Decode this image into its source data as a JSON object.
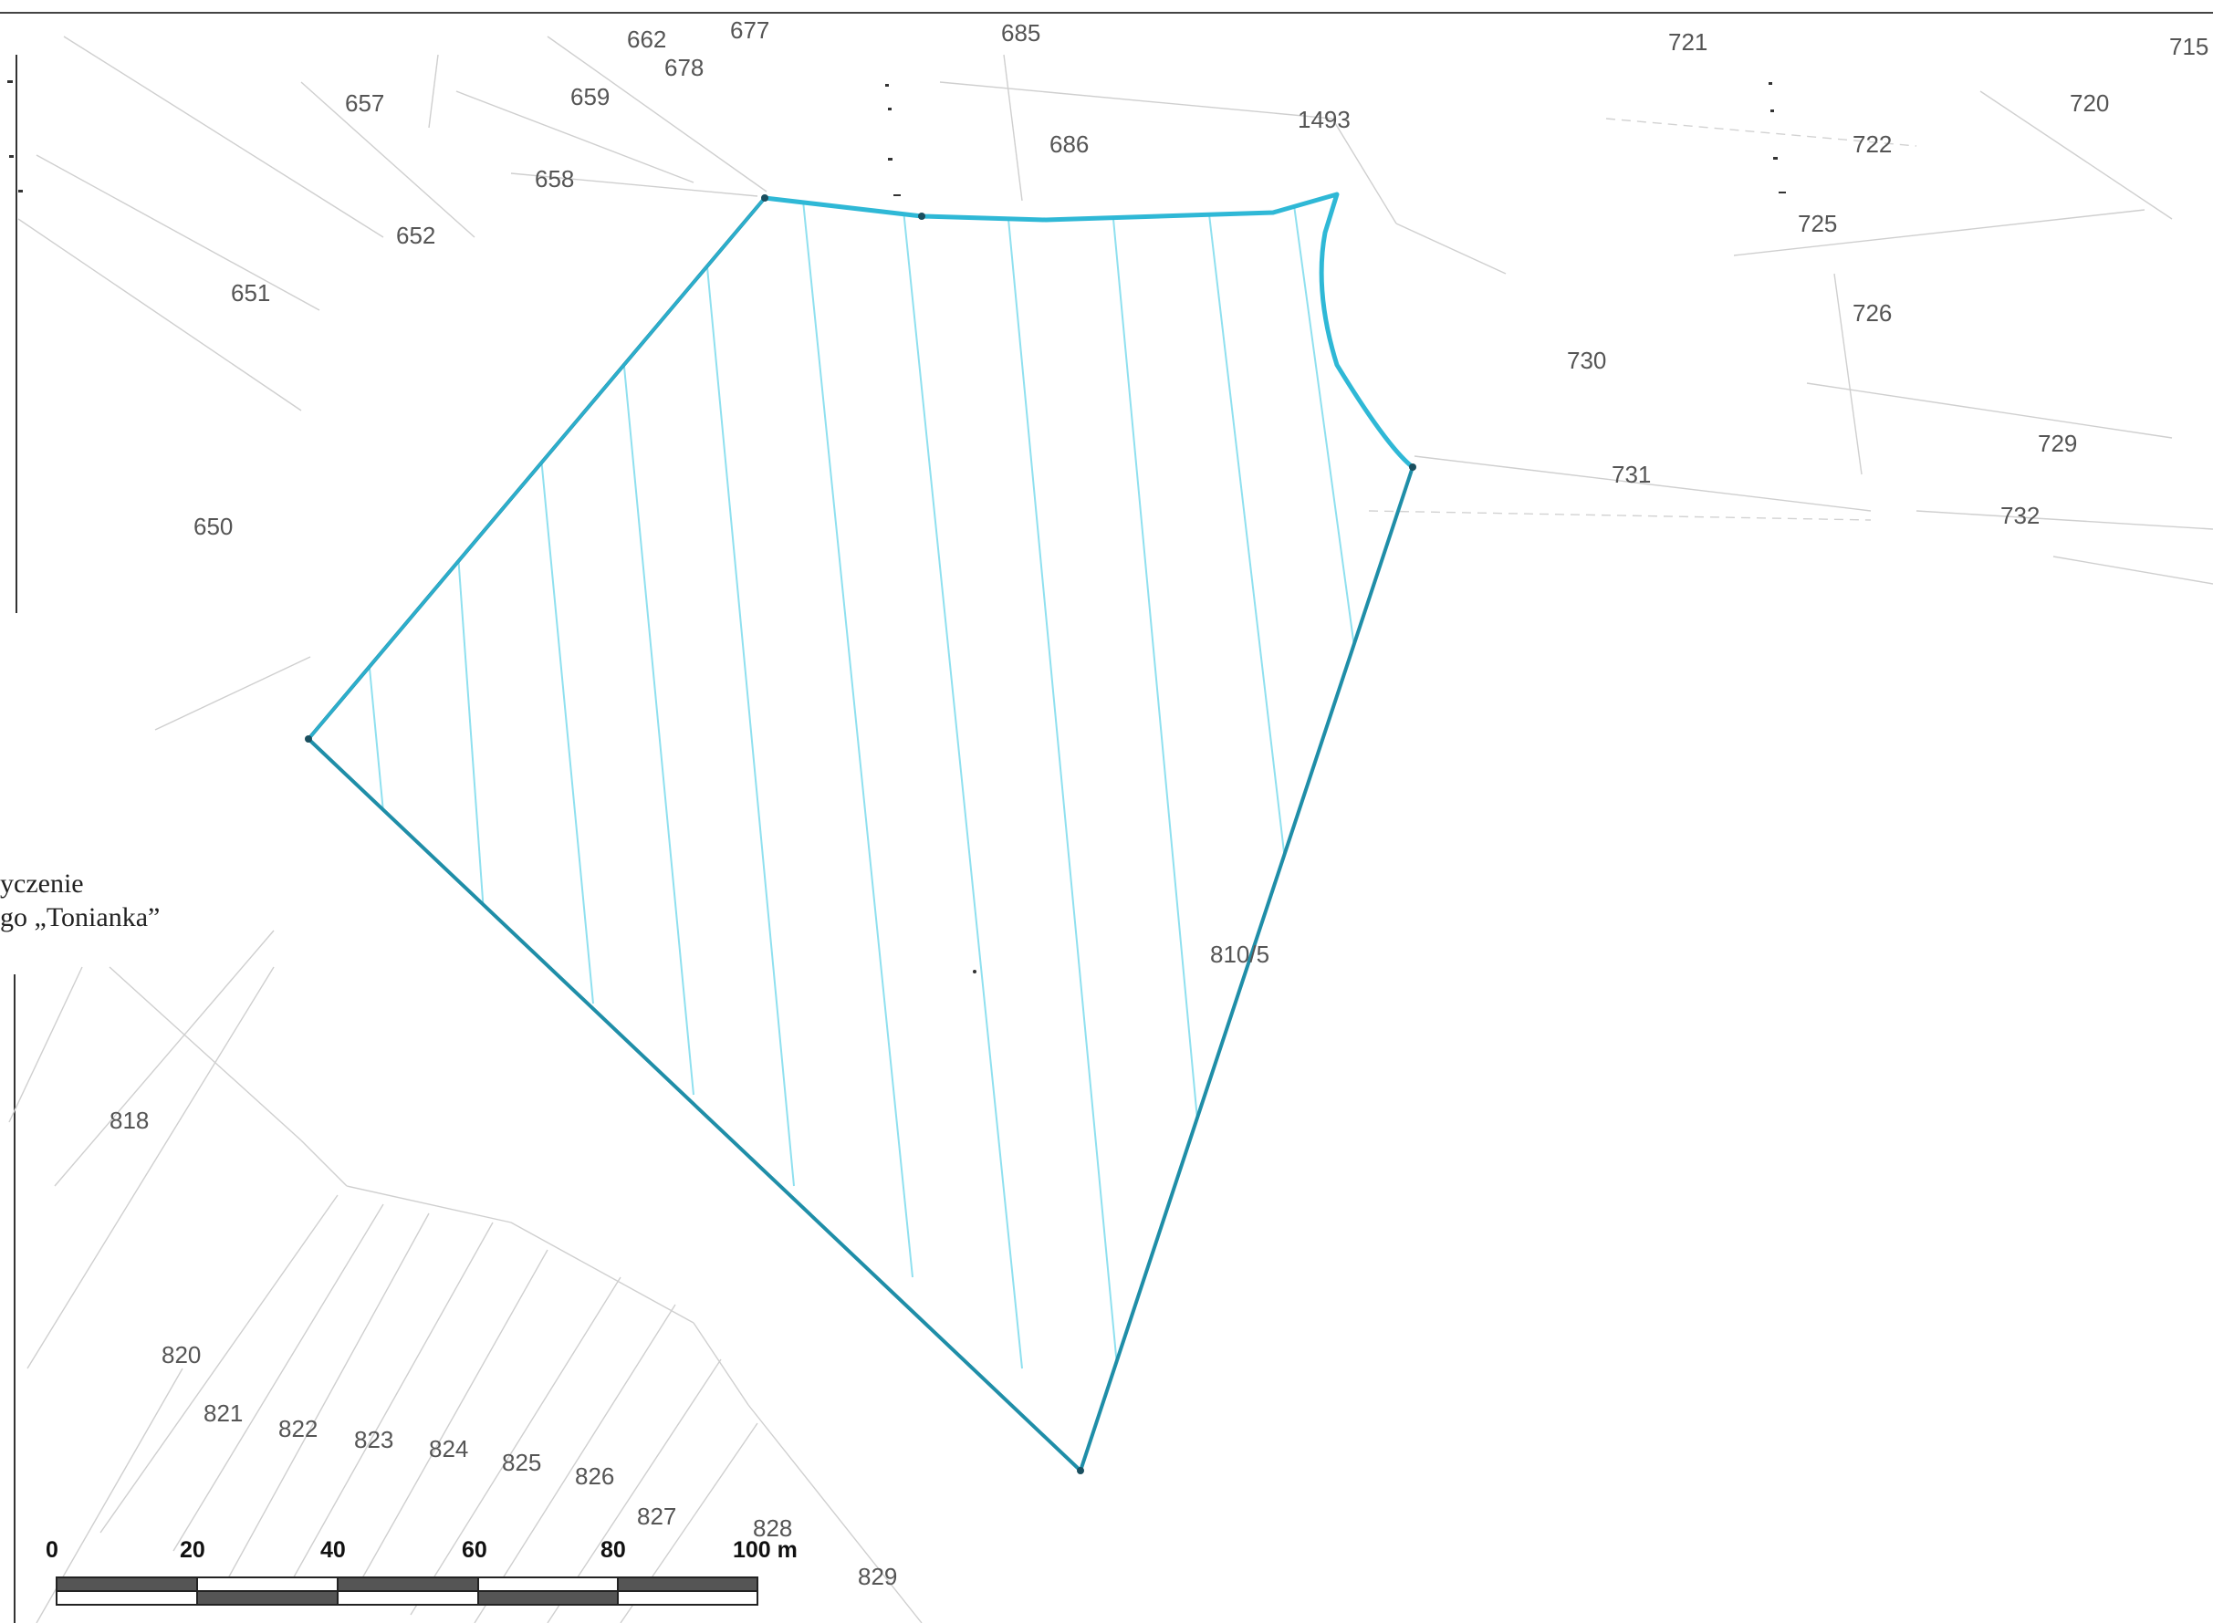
{
  "parcels": [
    {
      "id": "p-662",
      "label": "662"
    },
    {
      "id": "p-677",
      "label": "677"
    },
    {
      "id": "p-678",
      "label": "678"
    },
    {
      "id": "p-685",
      "label": "685"
    },
    {
      "id": "p-721",
      "label": "721"
    },
    {
      "id": "p-715",
      "label": "715"
    },
    {
      "id": "p-657",
      "label": "657"
    },
    {
      "id": "p-659",
      "label": "659"
    },
    {
      "id": "p-720",
      "label": "720"
    },
    {
      "id": "p-686",
      "label": "686"
    },
    {
      "id": "p-1493",
      "label": "1493"
    },
    {
      "id": "p-722",
      "label": "722"
    },
    {
      "id": "p-658",
      "label": "658"
    },
    {
      "id": "p-652",
      "label": "652"
    },
    {
      "id": "p-725",
      "label": "725"
    },
    {
      "id": "p-651",
      "label": "651"
    },
    {
      "id": "p-726",
      "label": "726"
    },
    {
      "id": "p-730",
      "label": "730"
    },
    {
      "id": "p-729",
      "label": "729"
    },
    {
      "id": "p-731",
      "label": "731"
    },
    {
      "id": "p-732",
      "label": "732"
    },
    {
      "id": "p-650",
      "label": "650"
    },
    {
      "id": "p-810-5",
      "label": "810/5"
    },
    {
      "id": "p-818",
      "label": "818"
    },
    {
      "id": "p-820",
      "label": "820"
    },
    {
      "id": "p-821",
      "label": "821"
    },
    {
      "id": "p-822",
      "label": "822"
    },
    {
      "id": "p-823",
      "label": "823"
    },
    {
      "id": "p-824",
      "label": "824"
    },
    {
      "id": "p-825",
      "label": "825"
    },
    {
      "id": "p-826",
      "label": "826"
    },
    {
      "id": "p-827",
      "label": "827"
    },
    {
      "id": "p-828",
      "label": "828"
    },
    {
      "id": "p-829",
      "label": "829"
    }
  ],
  "legend": {
    "line1": "yczenie",
    "line2": "go „Tonianka”"
  },
  "scale_bar": {
    "ticks": [
      "0",
      "20",
      "40",
      "60",
      "80",
      "100 m"
    ]
  },
  "colors": {
    "boundary": "#2fb8d6",
    "boundary_dark": "#1a6f86",
    "hatch": "#8fe0ef",
    "parcel_lines": "#cfcfcf",
    "label": "#555555"
  }
}
